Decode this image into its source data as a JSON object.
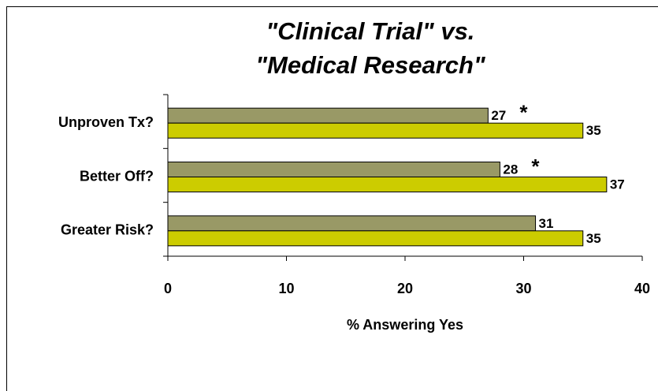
{
  "chart_data": {
    "type": "bar",
    "orientation": "horizontal",
    "title": [
      {
        "text": "\"Clinical Trial\" vs.",
        "color": "#999966"
      },
      {
        "text": "\"Medical Research\"",
        "color": "#cccc00"
      }
    ],
    "x_label": "% Answering Yes",
    "categories": [
      "Unproven Tx?",
      "Better Off?",
      "Greater Risk?"
    ],
    "series": [
      {
        "color": "#999966",
        "values": [
          27,
          28,
          31
        ],
        "annotations": [
          "*",
          "*",
          null
        ]
      },
      {
        "color": "#cccc00",
        "values": [
          35,
          37,
          35
        ]
      }
    ],
    "xlim": [
      0,
      40
    ],
    "xticks": [
      0,
      10,
      20,
      30,
      40
    ]
  }
}
